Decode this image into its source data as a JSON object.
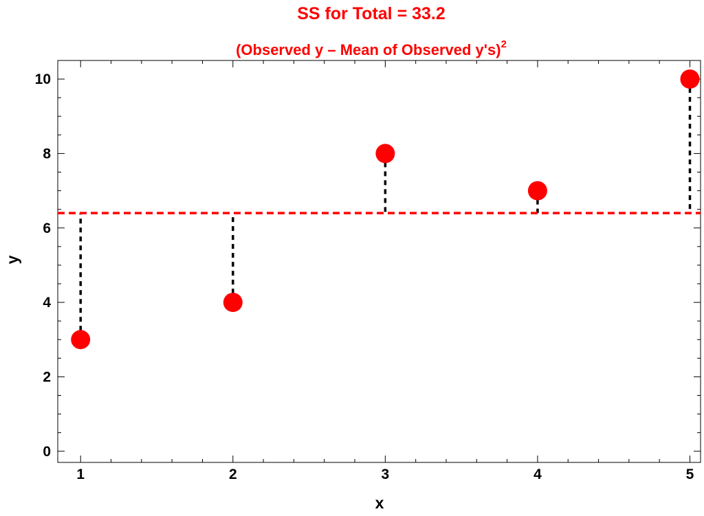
{
  "chart_data": {
    "type": "scatter",
    "title": "SS for Total = 33.2",
    "subtitle": "(Observed y – Mean of Observed y's)",
    "subtitle_superscript": "2",
    "xlabel": "x",
    "ylabel": "y",
    "x": [
      1,
      2,
      3,
      4,
      5
    ],
    "y": [
      3,
      4,
      8,
      7,
      10
    ],
    "mean_line": 6.4,
    "xlim": [
      0.85,
      5.07
    ],
    "ylim": [
      -0.3,
      10.5
    ],
    "x_ticks": [
      1,
      2,
      3,
      4,
      5
    ],
    "x_tick_labels": [
      "1",
      "2",
      "3",
      "4",
      "5"
    ],
    "y_ticks": [
      0,
      2,
      4,
      6,
      8,
      10
    ],
    "y_tick_labels": [
      "0",
      "2",
      "4",
      "6",
      "8",
      "10"
    ],
    "grid": false,
    "colors": {
      "points": "#ff0000",
      "mean_line": "#ff0000",
      "residuals": "#000000",
      "title": "#ff0000"
    }
  }
}
